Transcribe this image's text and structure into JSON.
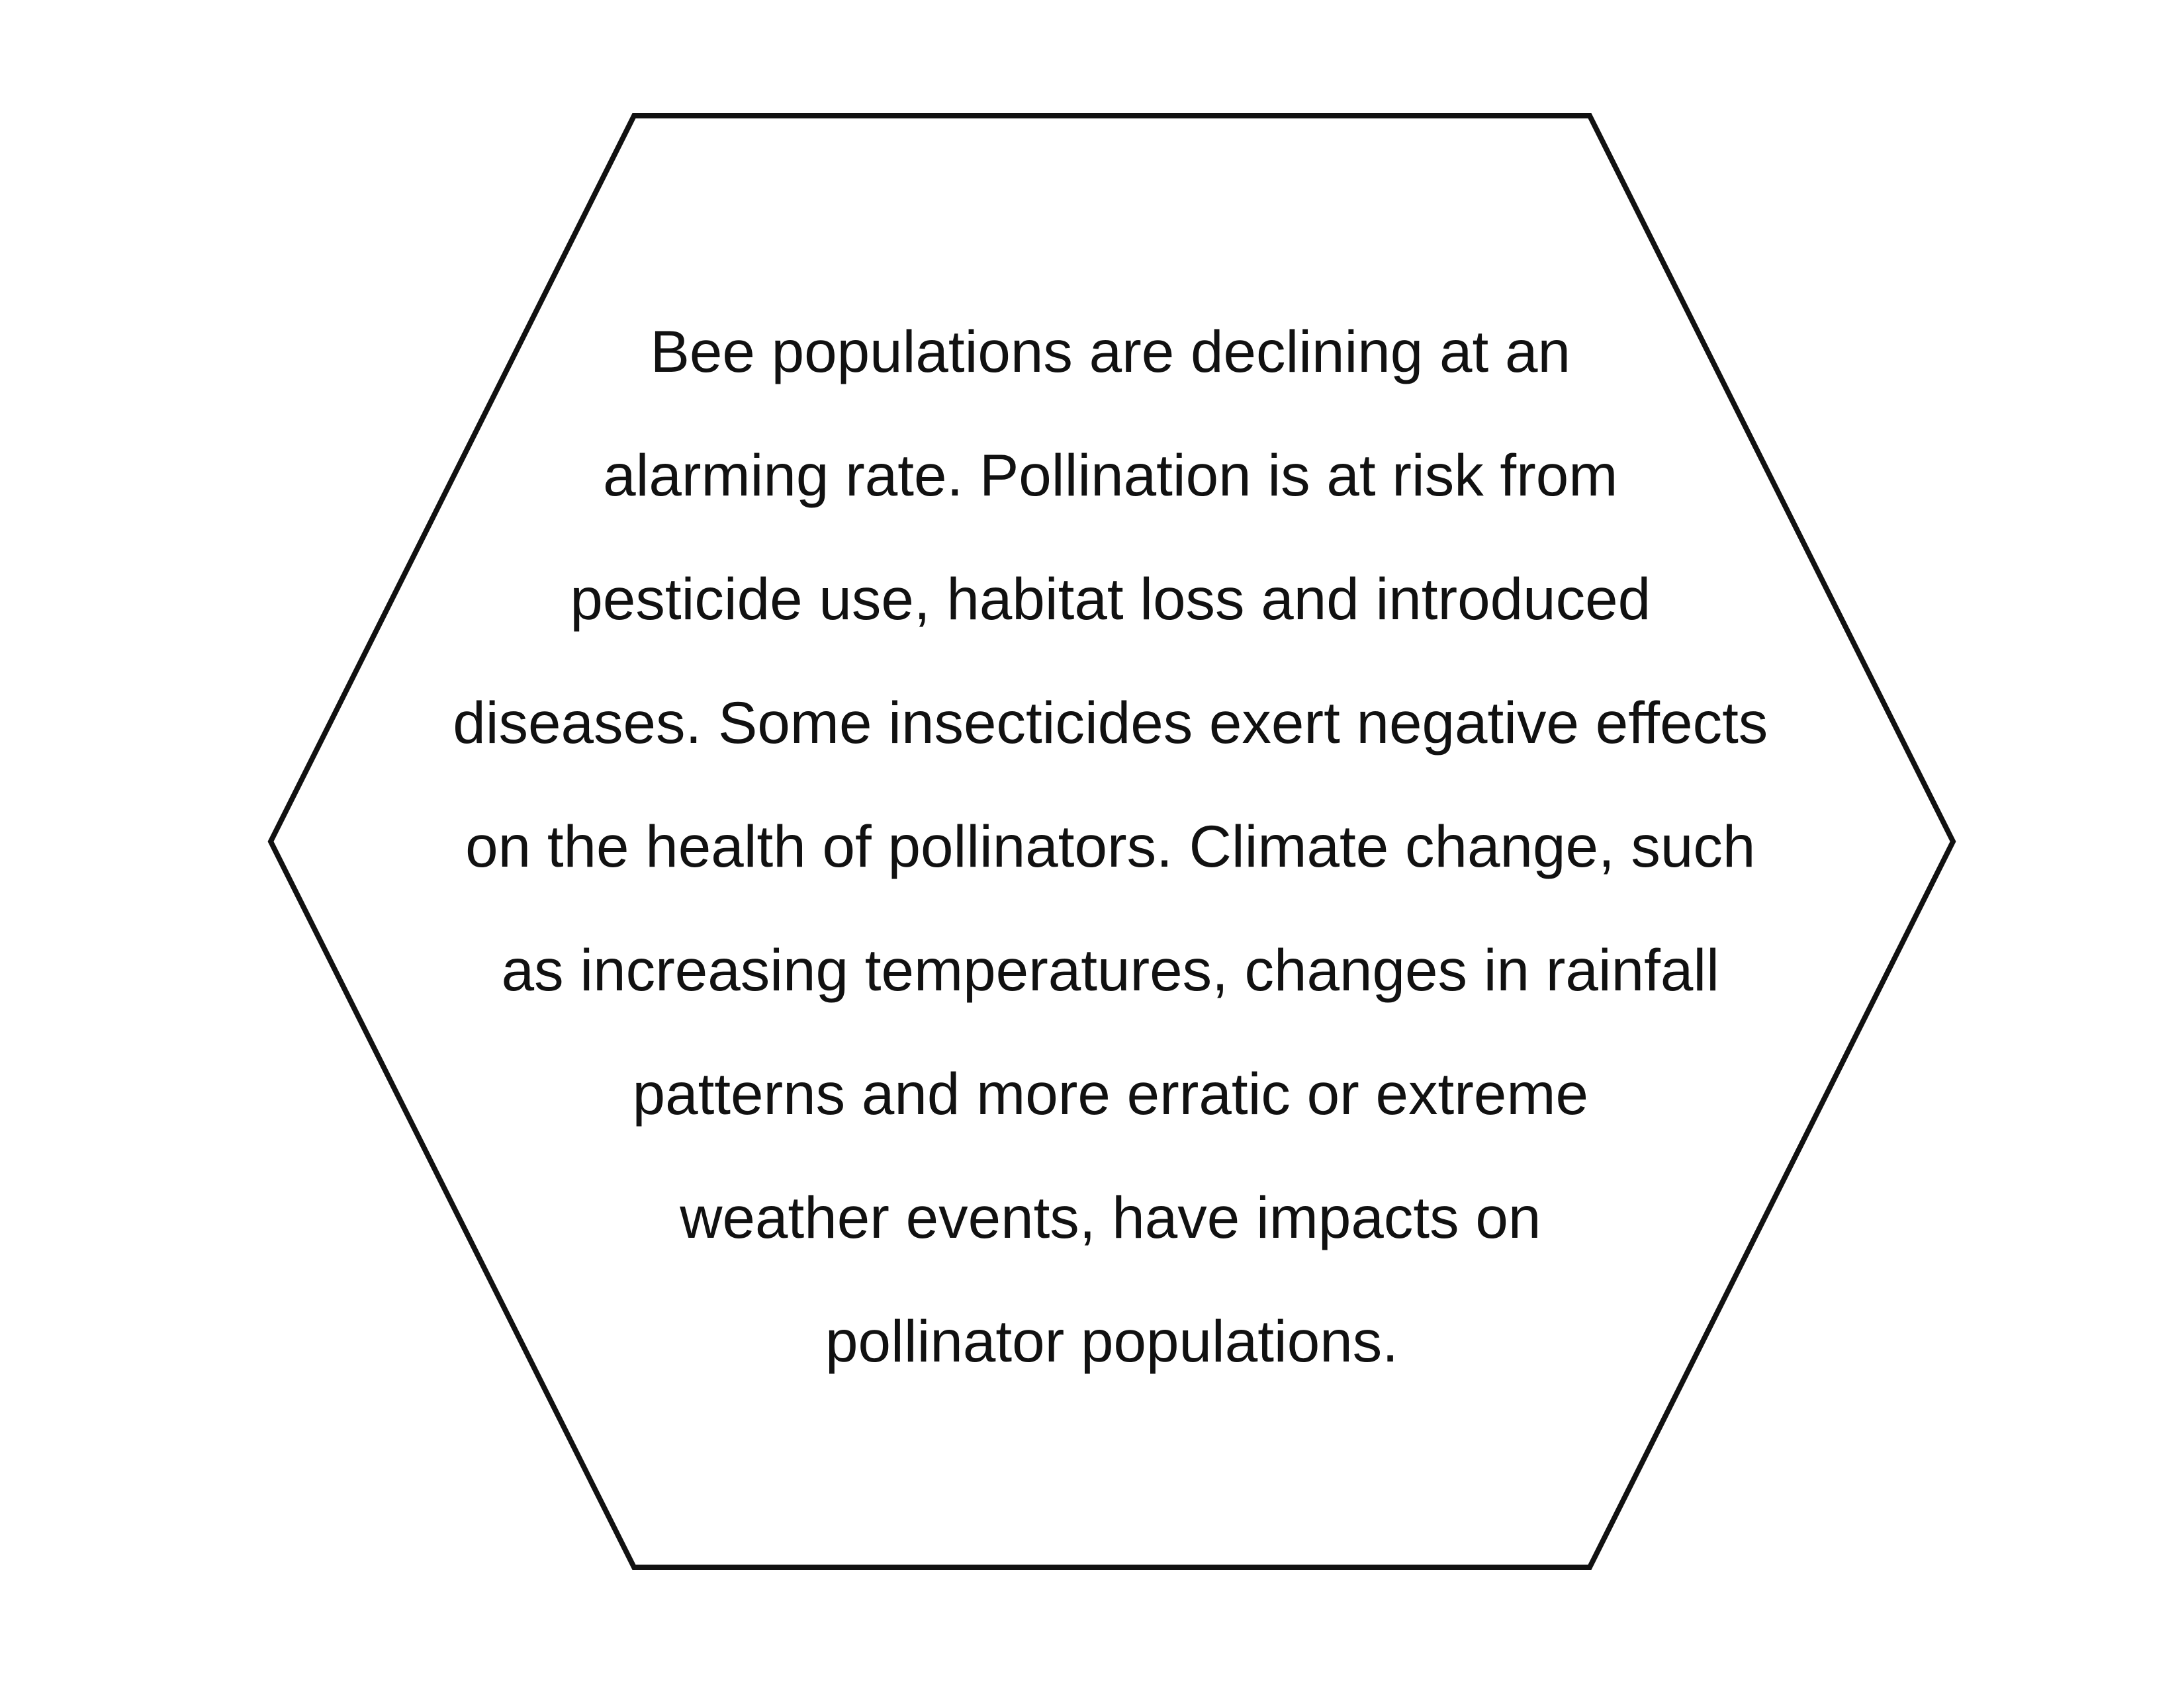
{
  "hexagon": {
    "lines": [
      "Bee populations are declining at an",
      "alarming rate. Pollination is at risk from",
      "pesticide use, habitat loss and introduced",
      "diseases. Some insecticides exert negative effects",
      "on the health of pollinators. Climate change, such",
      "as increasing temperatures, changes in rainfall",
      "patterns and more erratic or extreme",
      "weather events, have impacts on",
      "pollinator populations."
    ]
  }
}
